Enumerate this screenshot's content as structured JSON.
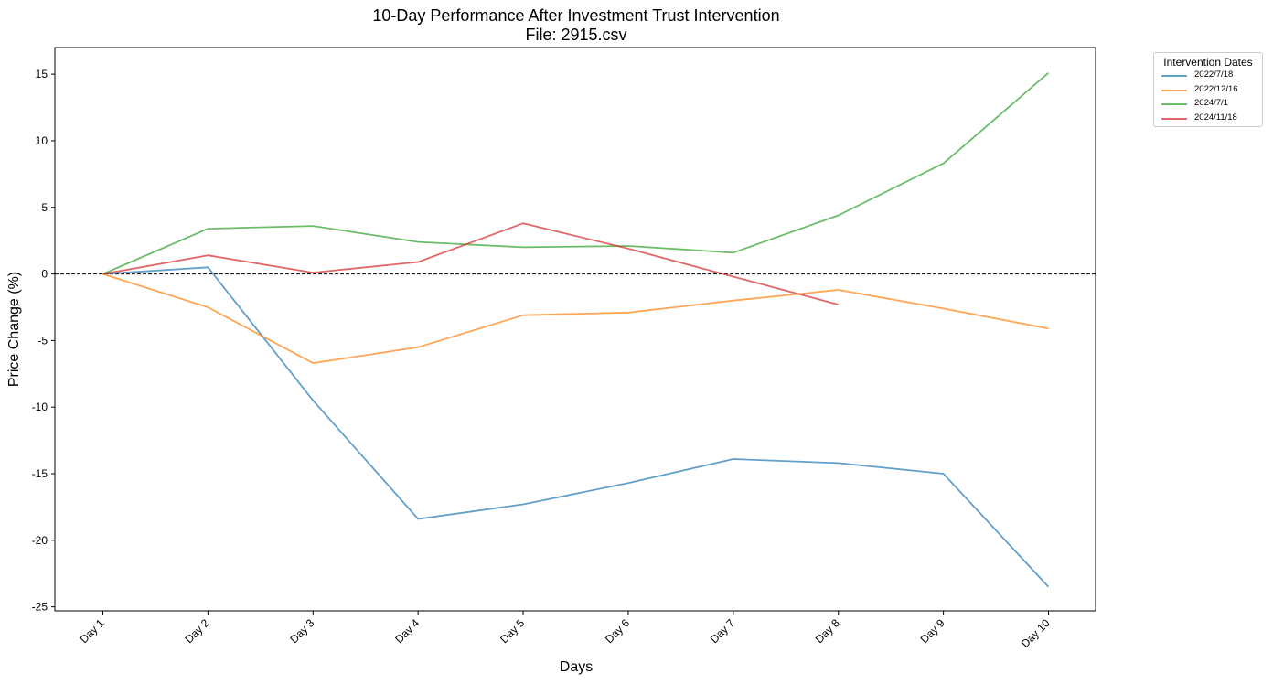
{
  "chart_data": {
    "type": "line",
    "title": "10-Day Performance After Investment Trust Intervention",
    "subtitle": "File: 2915.csv",
    "xlabel": "Days",
    "ylabel": "Price Change (%)",
    "categories": [
      "Day 1",
      "Day 2",
      "Day 3",
      "Day 4",
      "Day 5",
      "Day 6",
      "Day 7",
      "Day 8",
      "Day 9",
      "Day 10"
    ],
    "ylim": [
      -25.3,
      17
    ],
    "yticks": [
      -25,
      -20,
      -15,
      -10,
      -5,
      0,
      5,
      10,
      15
    ],
    "zero_line": true,
    "grid": false,
    "legend": {
      "title": "Intervention Dates",
      "placement": "outside top-right"
    },
    "series": [
      {
        "name": "2022/7/18",
        "color": "#1f77b4",
        "values": [
          0,
          0.5,
          -9.5,
          -18.4,
          -17.3,
          -15.7,
          -13.9,
          -14.2,
          -15.0,
          -23.5
        ]
      },
      {
        "name": "2022/12/16",
        "color": "#ff7f0e",
        "values": [
          0,
          -2.5,
          -6.7,
          -5.5,
          -3.1,
          -2.9,
          -2.0,
          -1.2,
          -2.6,
          -4.1
        ]
      },
      {
        "name": "2024/7/1",
        "color": "#2ca02c",
        "values": [
          0,
          3.4,
          3.6,
          2.4,
          2.0,
          2.1,
          1.6,
          4.4,
          8.3,
          15.1
        ]
      },
      {
        "name": "2024/11/18",
        "color": "#d62728",
        "values": [
          0,
          1.4,
          0.1,
          0.9,
          3.8,
          1.9,
          -0.2,
          -2.3,
          null,
          null
        ]
      }
    ]
  }
}
